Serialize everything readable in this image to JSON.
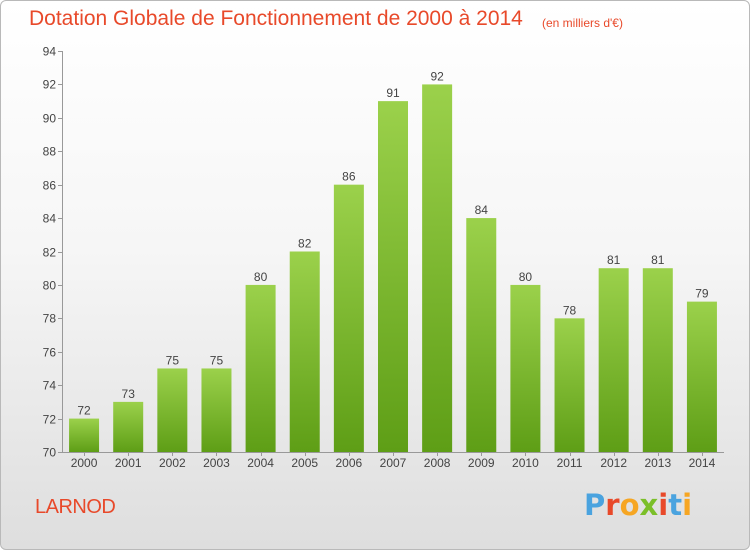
{
  "header": {
    "title": "Dotation Globale de Fonctionnement de 2000 à 2014",
    "unit": "(en milliers d'€)"
  },
  "footer": {
    "commune": "LARNOD",
    "logo_text": "Proxiti"
  },
  "colors": {
    "title": "#e8492a",
    "bar_light": "#9bd14b",
    "bar_dark": "#5e9e16",
    "logo": [
      "#4aa3df",
      "#e8492a",
      "#f6a623",
      "#7bbf29",
      "#e8492a",
      "#4aa3df",
      "#f6a623"
    ]
  },
  "chart_data": {
    "type": "bar",
    "title": "Dotation Globale de Fonctionnement de 2000 à 2014",
    "subtitle": "(en milliers d'€)",
    "xlabel": "",
    "ylabel": "",
    "categories": [
      "2000",
      "2001",
      "2002",
      "2003",
      "2004",
      "2005",
      "2006",
      "2007",
      "2008",
      "2009",
      "2010",
      "2011",
      "2012",
      "2013",
      "2014"
    ],
    "values": [
      72,
      73,
      75,
      75,
      80,
      82,
      86,
      91,
      92,
      84,
      80,
      78,
      81,
      81,
      79
    ],
    "ylim": [
      70,
      94
    ],
    "yticks": [
      70,
      72,
      74,
      76,
      78,
      80,
      82,
      84,
      86,
      88,
      90,
      92,
      94
    ],
    "grid": false,
    "data_labels": true
  }
}
